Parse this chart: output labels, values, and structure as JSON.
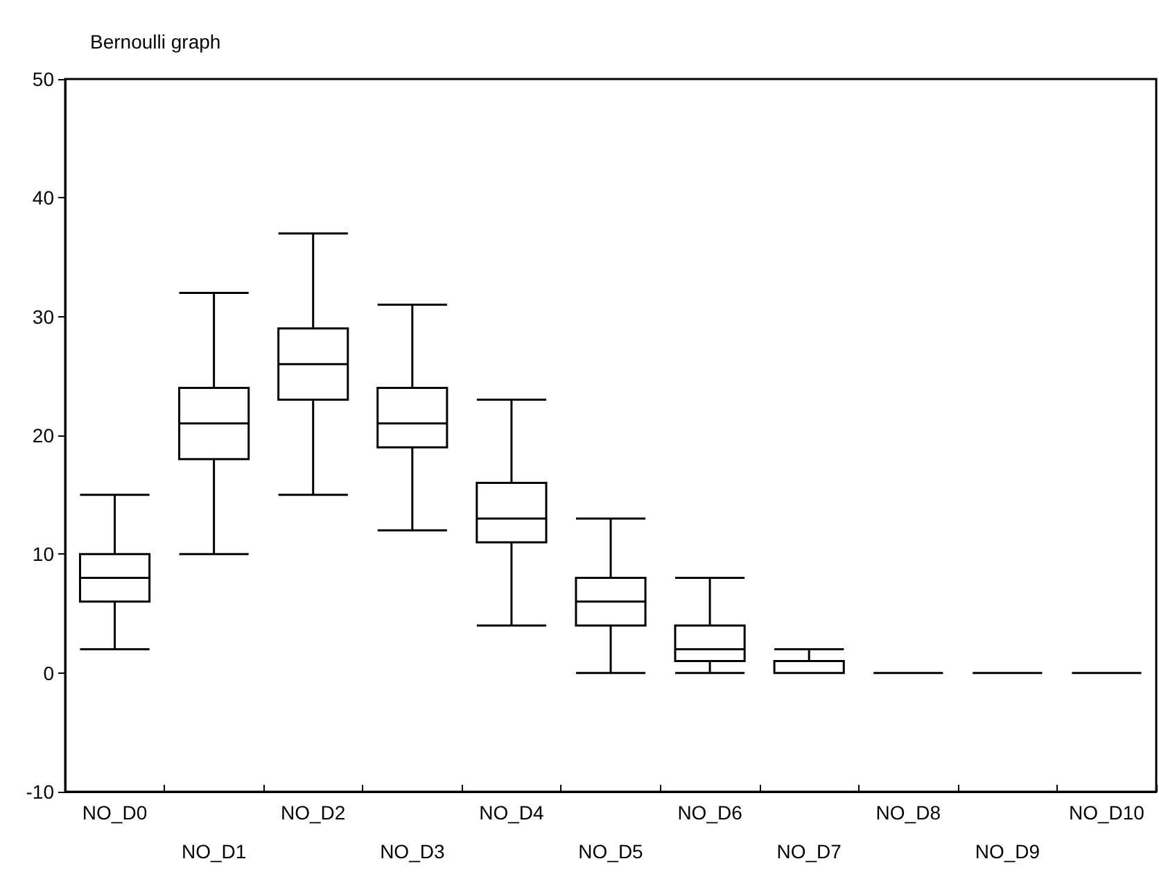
{
  "chart_data": {
    "type": "box",
    "title": "Bernoulli graph",
    "categories": [
      "NO_D0",
      "NO_D1",
      "NO_D2",
      "NO_D3",
      "NO_D4",
      "NO_D5",
      "NO_D6",
      "NO_D7",
      "NO_D8",
      "NO_D9",
      "NO_D10"
    ],
    "ylim": [
      -10,
      50
    ],
    "yticks": [
      -10,
      0,
      10,
      20,
      30,
      40,
      50
    ],
    "grid": false,
    "series": [
      {
        "color": "#000000",
        "boxes": [
          {
            "low": 2,
            "q1": 6,
            "median": 8,
            "q3": 10,
            "high": 15
          },
          {
            "low": 10,
            "q1": 18,
            "median": 21,
            "q3": 24,
            "high": 32
          },
          {
            "low": 15,
            "q1": 23,
            "median": 26,
            "q3": 29,
            "high": 37
          },
          {
            "low": 12,
            "q1": 19,
            "median": 21,
            "q3": 24,
            "high": 31
          },
          {
            "low": 4,
            "q1": 11,
            "median": 13,
            "q3": 16,
            "high": 23
          },
          {
            "low": 0,
            "q1": 4,
            "median": 6,
            "q3": 8,
            "high": 13
          },
          {
            "low": 0,
            "q1": 1,
            "median": 2,
            "q3": 4,
            "high": 8
          },
          {
            "low": 0,
            "q1": 0,
            "median": 0,
            "q3": 1,
            "high": 2
          },
          {
            "low": 0,
            "q1": 0,
            "median": 0,
            "q3": 0,
            "high": 0
          },
          {
            "low": 0,
            "q1": 0,
            "median": 0,
            "q3": 0,
            "high": 0
          },
          {
            "low": 0,
            "q1": 0,
            "median": 0,
            "q3": 0,
            "high": 0
          }
        ]
      }
    ]
  }
}
